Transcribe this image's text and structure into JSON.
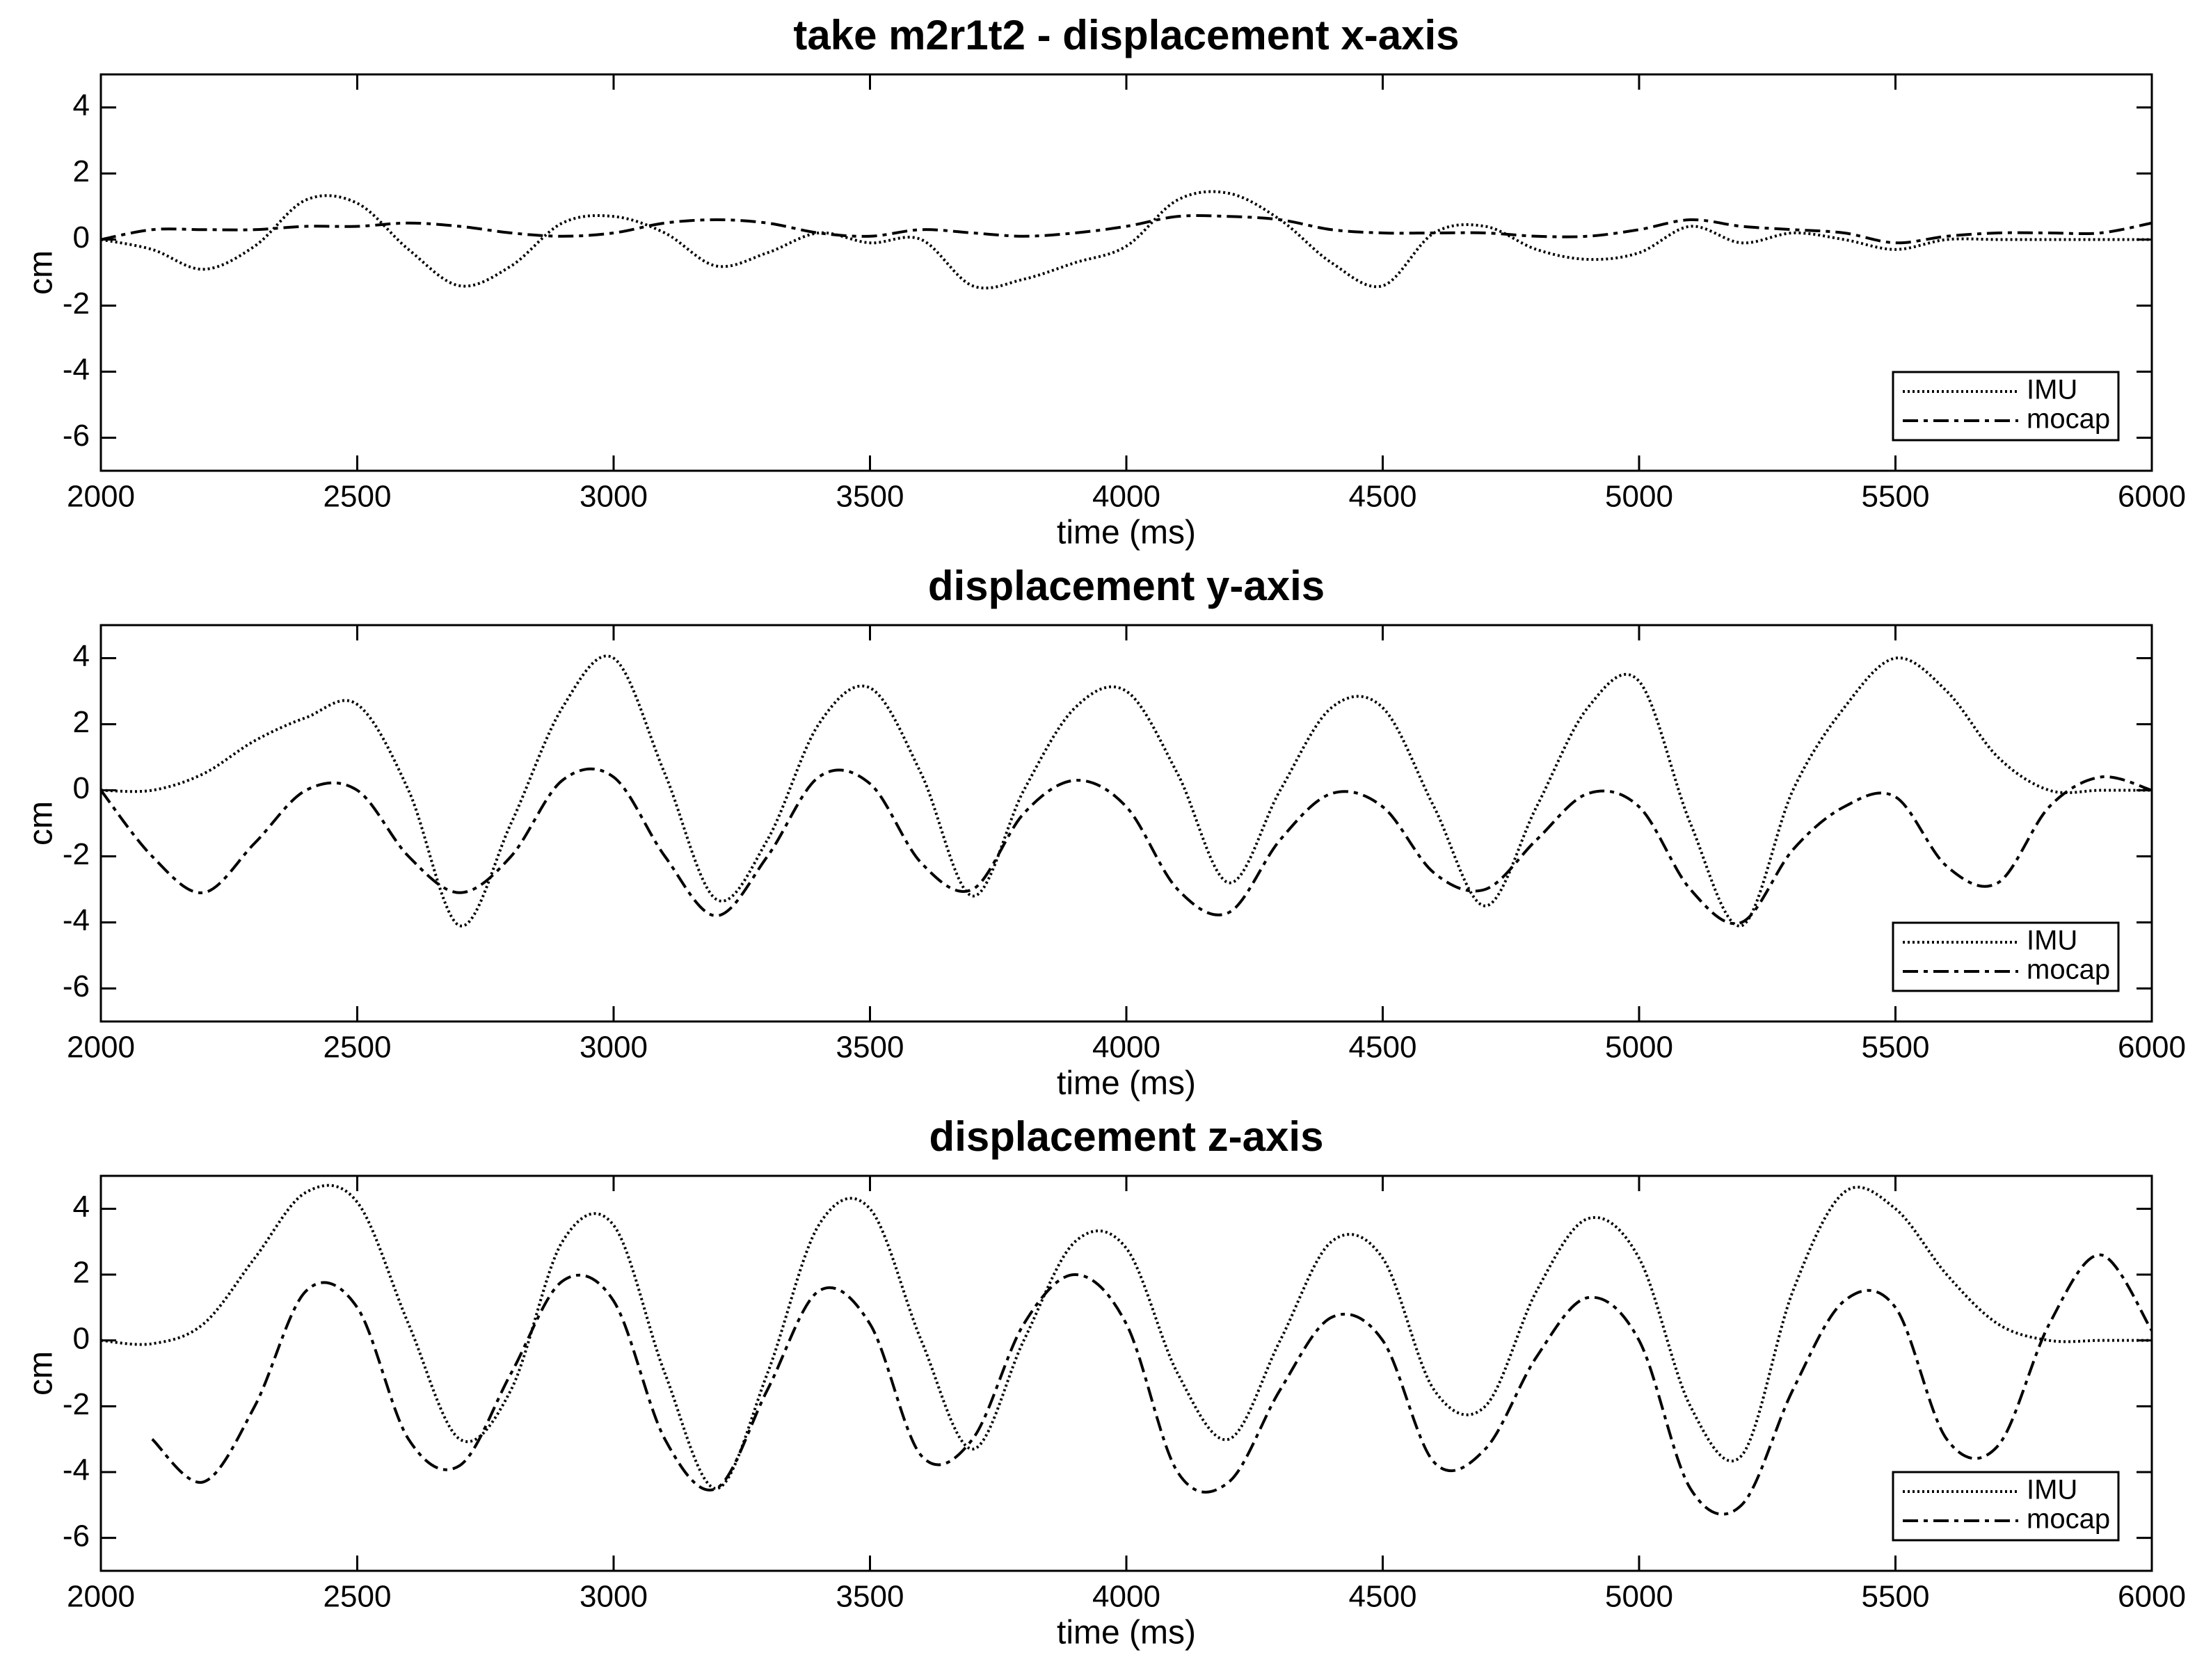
{
  "chart_data": [
    {
      "type": "line",
      "title": "take m2r1t2 - displacement x-axis",
      "xlabel": "time (ms)",
      "ylabel": "cm",
      "x": [
        2000,
        2100,
        2200,
        2300,
        2400,
        2500,
        2600,
        2700,
        2800,
        2900,
        3000,
        3100,
        3200,
        3300,
        3400,
        3500,
        3600,
        3700,
        3800,
        3900,
        4000,
        4100,
        4200,
        4300,
        4400,
        4500,
        4600,
        4700,
        4800,
        4900,
        5000,
        5100,
        5200,
        5300,
        5400,
        5500,
        5600,
        5700,
        5800,
        5900,
        6000
      ],
      "series": [
        {
          "name": "IMU",
          "color": "#000000",
          "linestyle": "dotted",
          "values": [
            0,
            -0.3,
            -0.9,
            -0.2,
            1.2,
            1.1,
            -0.3,
            -1.4,
            -0.8,
            0.5,
            0.7,
            0.2,
            -0.8,
            -0.4,
            0.2,
            -0.1,
            0,
            -1.4,
            -1.2,
            -0.7,
            -0.2,
            1.2,
            1.4,
            0.6,
            -0.7,
            -1.4,
            0.2,
            0.4,
            -0.3,
            -0.6,
            -0.4,
            0.4,
            -0.1,
            0.2,
            0,
            -0.3,
            0,
            0,
            0,
            0,
            0
          ]
        },
        {
          "name": "mocap",
          "color": "#000000",
          "linestyle": "dashed",
          "values": [
            0,
            0.3,
            0.3,
            0.3,
            0.4,
            0.4,
            0.5,
            0.4,
            0.2,
            0.1,
            0.2,
            0.5,
            0.6,
            0.5,
            0.2,
            0.1,
            0.3,
            0.2,
            0.1,
            0.2,
            0.4,
            0.7,
            0.7,
            0.6,
            0.3,
            0.2,
            0.2,
            0.2,
            0.1,
            0.1,
            0.3,
            0.6,
            0.4,
            0.3,
            0.2,
            -0.1,
            0.1,
            0.2,
            0.2,
            0.2,
            0.5
          ]
        }
      ],
      "xlim": [
        2000,
        6000
      ],
      "xticks": [
        2000,
        2500,
        3000,
        3500,
        4000,
        4500,
        5000,
        5500,
        6000
      ],
      "ylim": [
        -7,
        5
      ],
      "yticks": [
        -6,
        -4,
        -2,
        0,
        2,
        4
      ],
      "legend": "lower right"
    },
    {
      "type": "line",
      "title": "displacement y-axis",
      "xlabel": "time (ms)",
      "ylabel": "cm",
      "x": [
        2000,
        2100,
        2200,
        2300,
        2400,
        2500,
        2600,
        2700,
        2800,
        2900,
        3000,
        3100,
        3200,
        3300,
        3400,
        3500,
        3600,
        3700,
        3800,
        3900,
        4000,
        4100,
        4200,
        4300,
        4400,
        4500,
        4600,
        4700,
        4800,
        4900,
        5000,
        5100,
        5200,
        5300,
        5400,
        5500,
        5600,
        5700,
        5800,
        5900,
        6000
      ],
      "series": [
        {
          "name": "IMU",
          "color": "#000000",
          "linestyle": "dotted",
          "values": [
            0,
            0,
            0.5,
            1.5,
            2.2,
            2.6,
            0,
            -4.1,
            -1,
            2.5,
            4,
            0.5,
            -3.3,
            -1.5,
            2,
            3.1,
            0.5,
            -3.2,
            0,
            2.5,
            3,
            0.5,
            -2.8,
            0,
            2.5,
            2.5,
            -0.5,
            -3.5,
            -0.5,
            2.5,
            3.3,
            -1,
            -4.1,
            0,
            2.5,
            4,
            3,
            1,
            0,
            0,
            0
          ]
        },
        {
          "name": "mocap",
          "color": "#000000",
          "linestyle": "dashed",
          "values": [
            0,
            -2,
            -3.1,
            -1.6,
            0,
            0,
            -2,
            -3.1,
            -2,
            0.3,
            0.4,
            -2,
            -3.8,
            -2,
            0.4,
            0.2,
            -2.2,
            -3,
            -0.7,
            0.3,
            -0.5,
            -3,
            -3.7,
            -1.5,
            -0.1,
            -0.5,
            -2.5,
            -3,
            -1.5,
            -0.1,
            -0.5,
            -3,
            -4,
            -1.8,
            -0.5,
            -0.2,
            -2.3,
            -2.8,
            -0.5,
            0.4,
            0
          ]
        }
      ],
      "xlim": [
        2000,
        6000
      ],
      "xticks": [
        2000,
        2500,
        3000,
        3500,
        4000,
        4500,
        5000,
        5500,
        6000
      ],
      "ylim": [
        -7,
        5
      ],
      "yticks": [
        -6,
        -4,
        -2,
        0,
        2,
        4
      ],
      "legend": "lower right"
    },
    {
      "type": "line",
      "title": "displacement z-axis",
      "xlabel": "time (ms)",
      "ylabel": "cm",
      "x": [
        2000,
        2100,
        2200,
        2300,
        2400,
        2500,
        2600,
        2700,
        2800,
        2900,
        3000,
        3100,
        3200,
        3300,
        3400,
        3500,
        3600,
        3700,
        3800,
        3900,
        4000,
        4100,
        4200,
        4300,
        4400,
        4500,
        4600,
        4700,
        4800,
        4900,
        5000,
        5100,
        5200,
        5300,
        5400,
        5500,
        5600,
        5700,
        5800,
        5900,
        6000
      ],
      "series": [
        {
          "name": "IMU",
          "color": "#000000",
          "linestyle": "dotted",
          "values": [
            0,
            -0.1,
            0.5,
            2.5,
            4.5,
            4.2,
            0.5,
            -3,
            -1.5,
            3,
            3.5,
            -1,
            -4.5,
            -1,
            3.5,
            4,
            0,
            -3.3,
            0,
            3,
            2.8,
            -1,
            -3,
            0,
            3,
            2.5,
            -1.5,
            -2,
            1.5,
            3.7,
            2.5,
            -2,
            -3.5,
            1.5,
            4.5,
            4,
            2,
            0.5,
            0,
            0,
            0
          ]
        },
        {
          "name": "mocap",
          "color": "#000000",
          "linestyle": "dashed",
          "values": [
            null,
            -3,
            -4.3,
            -2,
            1.5,
            1,
            -3,
            -3.8,
            -1,
            1.8,
            1.2,
            -3,
            -4.5,
            -1.5,
            1.5,
            0.5,
            -3.5,
            -3,
            0.5,
            2,
            0.5,
            -4,
            -4.3,
            -1.5,
            0.7,
            0,
            -3.7,
            -3.3,
            -0.5,
            1.3,
            0,
            -4.5,
            -5,
            -1.5,
            1.2,
            1,
            -3,
            -3.2,
            0.5,
            2.6,
            0.3
          ]
        }
      ],
      "xlim": [
        2000,
        6000
      ],
      "xticks": [
        2000,
        2500,
        3000,
        3500,
        4000,
        4500,
        5000,
        5500,
        6000
      ],
      "ylim": [
        -7,
        5
      ],
      "yticks": [
        -6,
        -4,
        -2,
        0,
        2,
        4
      ],
      "legend": "lower right"
    }
  ]
}
